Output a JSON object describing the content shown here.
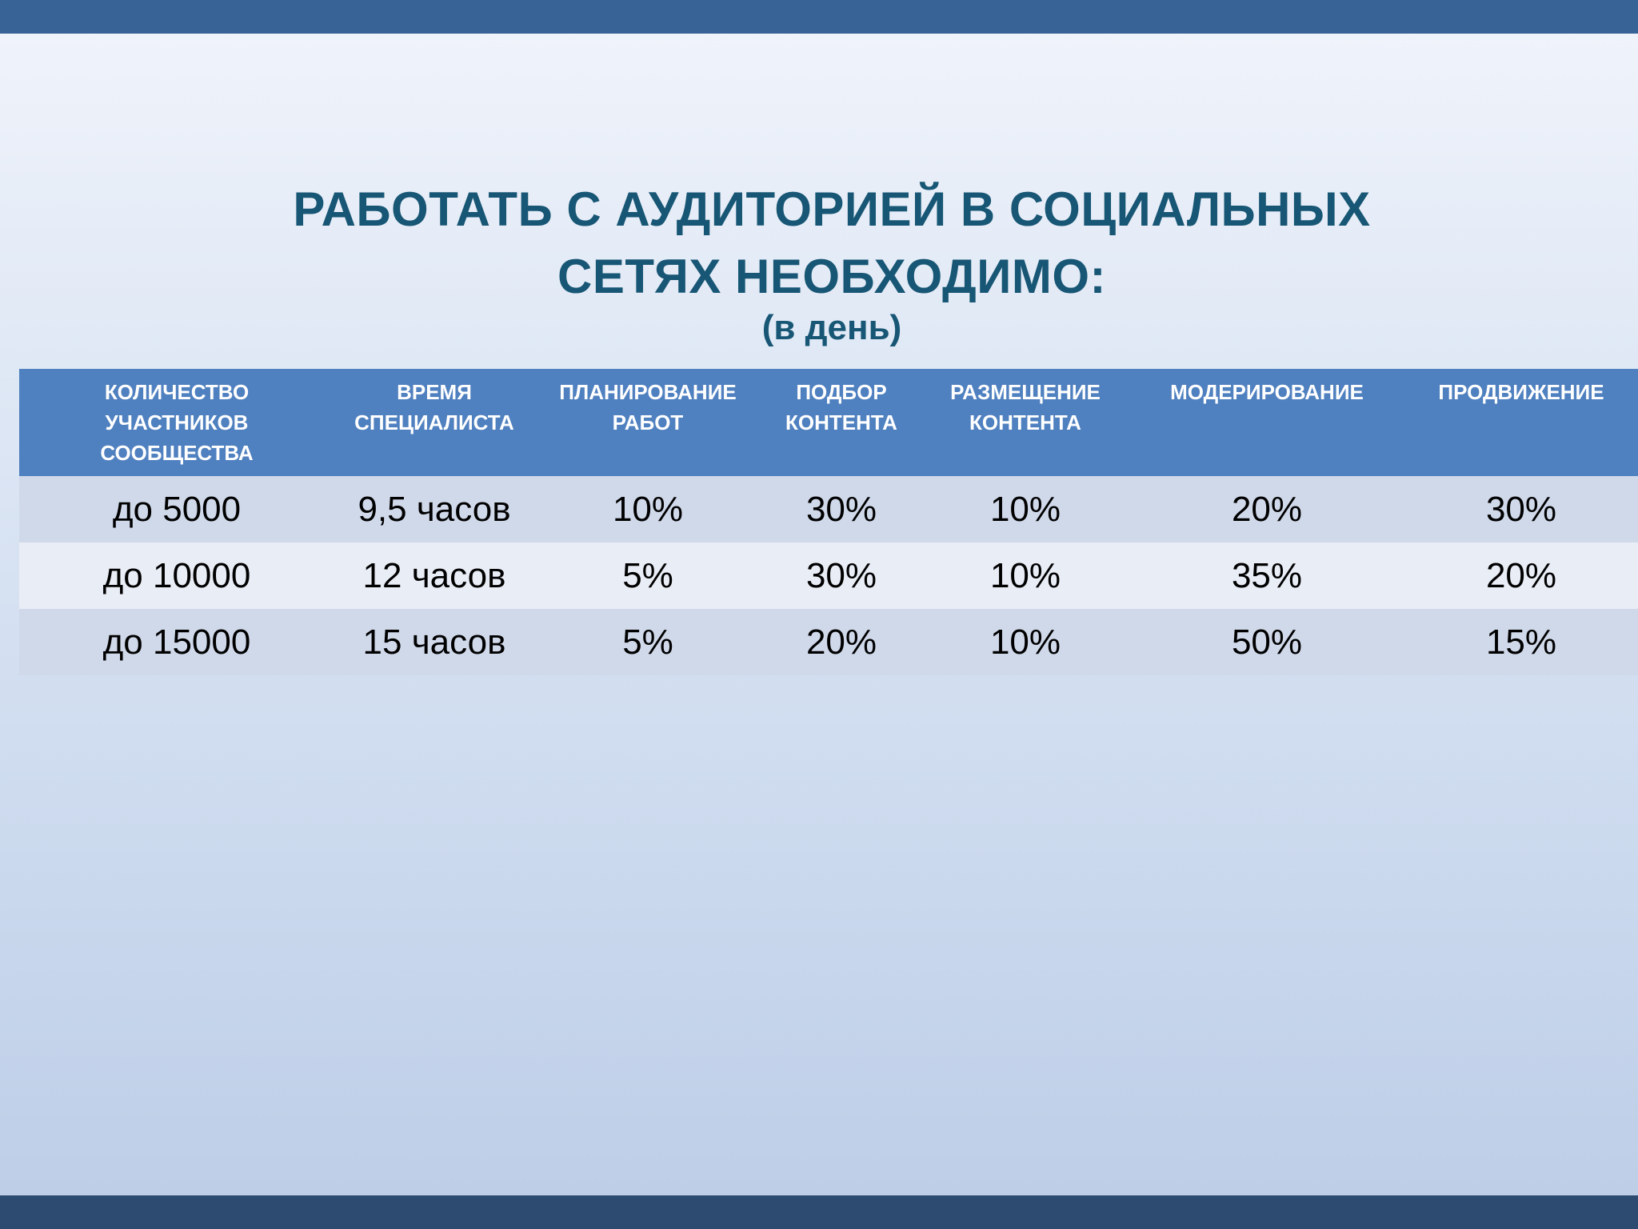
{
  "slide": {
    "title_line1": "РАБОТАТЬ С АУДИТОРИЕЙ В СОЦИАЛЬНЫХ",
    "title_line2": "СЕТЯХ НЕОБХОДИМО:",
    "subtitle": "(в день)"
  },
  "table": {
    "headers": [
      {
        "lines": [
          "КОЛИЧЕСТВО",
          "УЧАСТНИКОВ",
          "СООБЩЕСТВА"
        ]
      },
      {
        "lines": [
          "ВРЕМЯ",
          "СПЕЦИАЛИСТА"
        ]
      },
      {
        "lines": [
          "ПЛАНИРОВАНИЕ",
          "РАБОТ"
        ]
      },
      {
        "lines": [
          "ПОДБОР",
          "КОНТЕНТА"
        ]
      },
      {
        "lines": [
          "РАЗМЕЩЕНИЕ",
          "КОНТЕНТА"
        ]
      },
      {
        "lines": [
          "МОДЕРИРОВАНИЕ"
        ]
      },
      {
        "lines": [
          "ПРОДВИЖЕНИЕ"
        ]
      }
    ],
    "rows": [
      [
        "до 5000",
        "9,5 часов",
        "10%",
        "30%",
        "10%",
        "20%",
        "30%"
      ],
      [
        "до 10000",
        "12 часов",
        "5%",
        "30%",
        "10%",
        "35%",
        "20%"
      ],
      [
        "до 15000",
        "15 часов",
        "5%",
        "20%",
        "10%",
        "50%",
        "15%"
      ]
    ]
  }
}
